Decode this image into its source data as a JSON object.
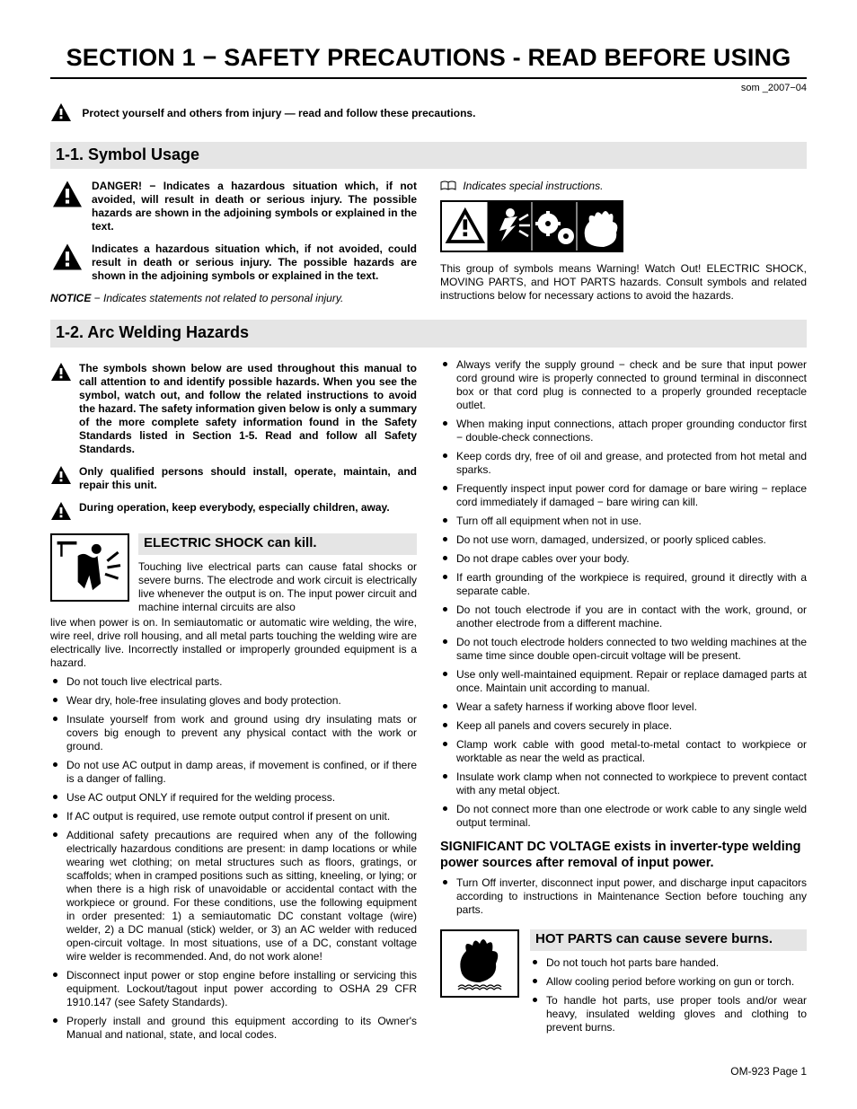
{
  "doc_code": "som _2007−04",
  "section_title": "SECTION 1 − SAFETY PRECAUTIONS - READ BEFORE USING",
  "protect_line": "Protect yourself and others from injury — read and follow these precautions.",
  "sub_1_1": "1-1.   Symbol Usage",
  "danger_text": "DANGER! − Indicates a hazardous situation which, if not avoided, will result in death or serious injury. The possible hazards are shown in the adjoining symbols or explained in the text.",
  "warn_text": "Indicates a hazardous situation which, if not avoided, could result in death or serious injury. The possible hazards are shown in the adjoining symbols or ex­plained in the text.",
  "notice_label": "NOTICE",
  "notice_text": " − Indicates statements not related to personal injury.",
  "special_label": "Indicates special instructions.",
  "group_desc": "This group of symbols means Warning! Watch Out! ELECTRIC SHOCK, MOVING PARTS, and HOT PARTS hazards. Consult sym­bols and related instructions below for necessary actions to avoid the hazards.",
  "sub_1_2": "1-2.   Arc Welding Hazards",
  "intro_para": "The symbols shown below are used throughout this manual to call attention to and identify possible hazards. When you see the symbol, watch out, and follow the related instructions to avoid the hazard. The safety information given below is only a summary of the more complete safety information found in the Safety Standards listed in Section 1-5. Read and follow all Safety Standards.",
  "qualified_para": "Only qualified persons should install, operate, maintain, and repair this unit.",
  "children_para": "During operation, keep everybody, especially children, away.",
  "shock_title": "ELECTRIC SHOCK can kill.",
  "shock_intro_part1": "Touching live electrical parts can cause fatal shocks or severe burns. The electrode and work circuit is electrically live whenever the output is on. The input power circuit and machine internal circuits are also",
  "shock_intro_part2": "live when power is on. In semiautomatic or automatic wire welding, the wire, wire reel, drive roll housing, and all metal parts touching the welding wire are electrically live. Incorrectly installed or improperly grounded equipment is a hazard.",
  "shock_bullets_left": [
    "Do not touch live electrical parts.",
    "Wear dry, hole-free insulating gloves and body protection.",
    "Insulate yourself from work and ground using dry insulating mats or covers big enough to prevent any physical contact with the work or ground.",
    "Do not use AC output in damp areas, if movement is confined, or if there is a danger of falling.",
    "Use AC output ONLY if required for the welding process.",
    "If AC output is required, use remote output control if present on unit.",
    "Additional safety precautions are required when any of the follow­ing electrically hazardous conditions are present: in damp locations or while wearing wet clothing; on metal structures such as floors, gratings, or scaffolds; when in cramped positions such as sitting, kneeling, or lying; or when there is a high risk of unavoid­able or accidental contact with the workpiece or ground. For these conditions, use the following equipment in order presented: 1) a semiautomatic DC constant voltage (wire) welder, 2) a DC manual (stick) welder, or 3) an AC welder with reduced open-circuit volt­age. In most situations, use of a DC, constant voltage wire welder is recommended. And, do not work alone!",
    "Disconnect input power or stop engine before installing or servicing this equipment. Lockout/tagout input power according to OSHA 29 CFR 1910.147 (see Safety Standards).",
    "Properly install and ground this equipment according to its Owner's Manual and national, state, and local codes."
  ],
  "shock_bullets_right": [
    "Always verify the supply ground − check and be sure that input power cord ground wire is properly connected to ground terminal in disconnect box or that cord plug is connected to a properly grounded receptacle outlet.",
    "When making input connections, attach proper grounding conduc­tor first − double-check connections.",
    "Keep cords dry, free of oil and grease, and protected from hot metal and sparks.",
    "Frequently inspect input power cord for damage or bare wiring − replace cord immediately if damaged − bare wiring can kill.",
    "Turn off all equipment when not in use.",
    "Do not use worn, damaged, undersized, or poorly spliced cables.",
    "Do not drape cables over your body.",
    "If earth grounding of the workpiece is required, ground it directly with a separate cable.",
    "Do not touch electrode if you are in contact with the work, ground, or another electrode from a different machine.",
    "Do not touch electrode holders connected to two welding ma­chines at the same time since double open-circuit voltage will be present.",
    "Use only well-maintained equipment. Repair or replace damaged parts at once. Maintain unit according to manual.",
    "Wear a safety harness if working above floor level.",
    "Keep all panels and covers securely in place.",
    "Clamp work cable with good metal-to-metal contact to workpiece or worktable as near the weld as practical.",
    "Insulate work clamp when not connected to workpiece to prevent contact with any metal object.",
    "Do not connect more than one electrode or work cable to any single weld output terminal."
  ],
  "sig_head": "SIGNIFICANT DC VOLTAGE exists in inverter-type welding power sources after removal of input power.",
  "sig_bullets": [
    "Turn Off inverter, disconnect input power, and discharge input capacitors according to instructions in Maintenance Section before touching any parts."
  ],
  "hot_title": "HOT PARTS can cause severe burns.",
  "hot_bullets": [
    "Do not touch hot parts bare handed.",
    "Allow cooling period before working on gun or torch.",
    "To handle hot parts, use proper tools and/or wear heavy, insulated welding gloves and clothing to prevent burns."
  ],
  "footer": "OM-923 Page 1"
}
